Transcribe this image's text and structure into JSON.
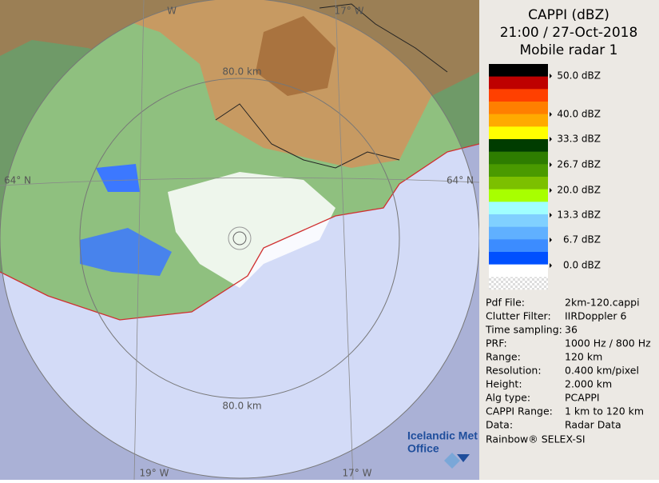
{
  "map": {
    "labels": [
      "W",
      "17° W",
      "80.0 km",
      "64° N",
      "64° N",
      "80.0 km",
      "19° W",
      "17° W"
    ]
  },
  "legend": {
    "title": [
      "CAPPI (dBZ)",
      "21:00 / 27-Oct-2018",
      "Mobile radar 1"
    ],
    "swatches": [
      "#000000",
      "#be0000",
      "#ff4000",
      "#ff7f00",
      "#ffaa00",
      "#ffff00",
      "#003c00",
      "#2e7d00",
      "#4a9a00",
      "#7cc000",
      "#a8ff00",
      "#a0ffff",
      "#80d0ff",
      "#60b0ff",
      "#3c8cff",
      "#0050ff",
      "#ffffff",
      "#f0f0f0"
    ],
    "labels": [
      "50.0 dBZ",
      "40.0 dBZ",
      "33.3 dBZ",
      "26.7 dBZ",
      "20.0 dBZ",
      "13.3 dBZ",
      "6.7 dBZ",
      "0.0 dBZ"
    ]
  },
  "info": {
    "rows": [
      [
        "Pdf File:",
        "2km-120.cappi"
      ],
      [
        "Clutter Filter:",
        "IIRDoppler 6"
      ],
      [
        "Time sampling:",
        "36"
      ],
      [
        "PRF:",
        "1000 Hz / 800 Hz"
      ],
      [
        "Range:",
        "120 km"
      ],
      [
        "Resolution:",
        "0.400 km/pixel"
      ],
      [
        "Height:",
        "2.000 km"
      ],
      [
        "Alg type:",
        "PCAPPI"
      ],
      [
        "CAPPI Range:",
        "1 km to 120 km"
      ],
      [
        "Data:",
        "Radar Data"
      ]
    ],
    "footer": "Rainbow® SELEX-SI"
  },
  "logo": [
    "Icelandic Met",
    "Office"
  ]
}
